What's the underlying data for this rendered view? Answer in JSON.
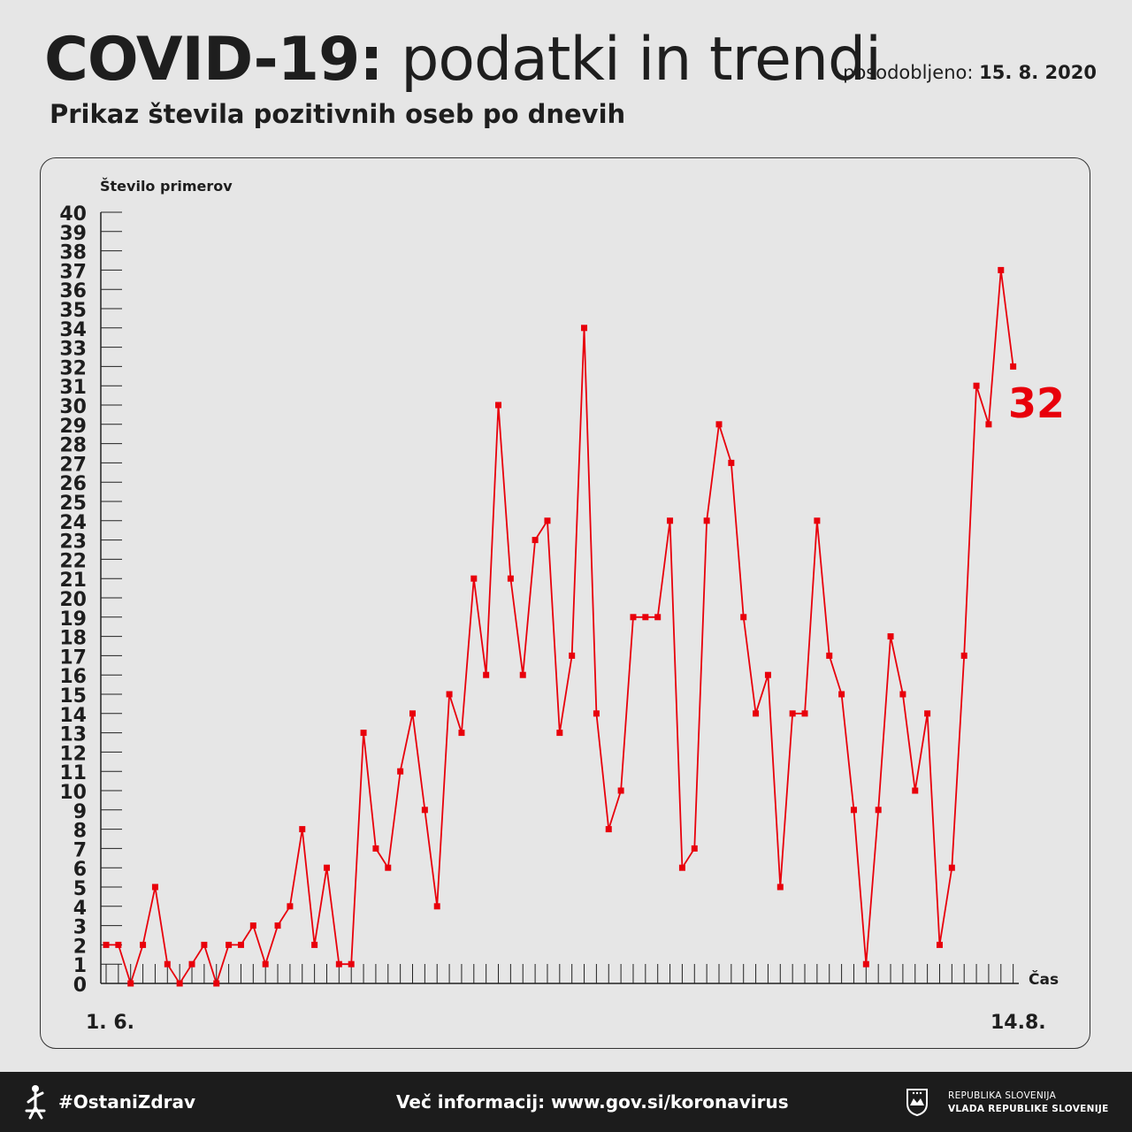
{
  "header": {
    "title_bold": "COVID-19:",
    "title_rest": "podatki in trendi",
    "updated_label": "posodobljeno:",
    "updated_date": "15. 8. 2020",
    "subtitle": "Prikaz števila pozitivnih oseb po dnevih"
  },
  "chart_data": {
    "type": "line",
    "ylabel": "Število primerov",
    "xlabel": "Čas",
    "ylim": [
      0,
      40
    ],
    "y_ticks": [
      0,
      1,
      2,
      3,
      4,
      5,
      6,
      7,
      8,
      9,
      10,
      11,
      12,
      13,
      14,
      15,
      16,
      17,
      18,
      19,
      20,
      21,
      22,
      23,
      24,
      25,
      26,
      27,
      28,
      29,
      30,
      31,
      32,
      33,
      34,
      35,
      36,
      37,
      38,
      39,
      40
    ],
    "x_start_label": "1. 6.",
    "x_end_label": "14.8.",
    "categories_count": 75,
    "series": [
      {
        "color": "#e8000b",
        "values": [
          2,
          2,
          0,
          2,
          5,
          1,
          0,
          1,
          2,
          0,
          2,
          2,
          3,
          1,
          3,
          4,
          8,
          2,
          6,
          1,
          1,
          13,
          7,
          6,
          11,
          14,
          9,
          4,
          15,
          13,
          21,
          16,
          30,
          21,
          16,
          23,
          24,
          13,
          17,
          34,
          14,
          8,
          10,
          19,
          19,
          19,
          24,
          6,
          7,
          24,
          29,
          27,
          19,
          14,
          16,
          5,
          14,
          14,
          24,
          17,
          15,
          9,
          1,
          9,
          18,
          15,
          10,
          14,
          2,
          6,
          17,
          31,
          29,
          37,
          32
        ]
      }
    ],
    "highlight_label": "32",
    "grid": false
  },
  "colors": {
    "accent": "#e8000b",
    "background": "#e6e6e6",
    "footer": "#1c1c1c"
  },
  "footer": {
    "hashtag": "#OstaniZdrav",
    "more_info": "Več informacij: www.gov.si/koronavirus",
    "gov_line1": "REPUBLIKA SLOVENIJA",
    "gov_line2": "VLADA REPUBLIKE SLOVENIJE",
    "left_icon": "figure-logo-icon",
    "right_icon": "coat-of-arms-icon"
  }
}
